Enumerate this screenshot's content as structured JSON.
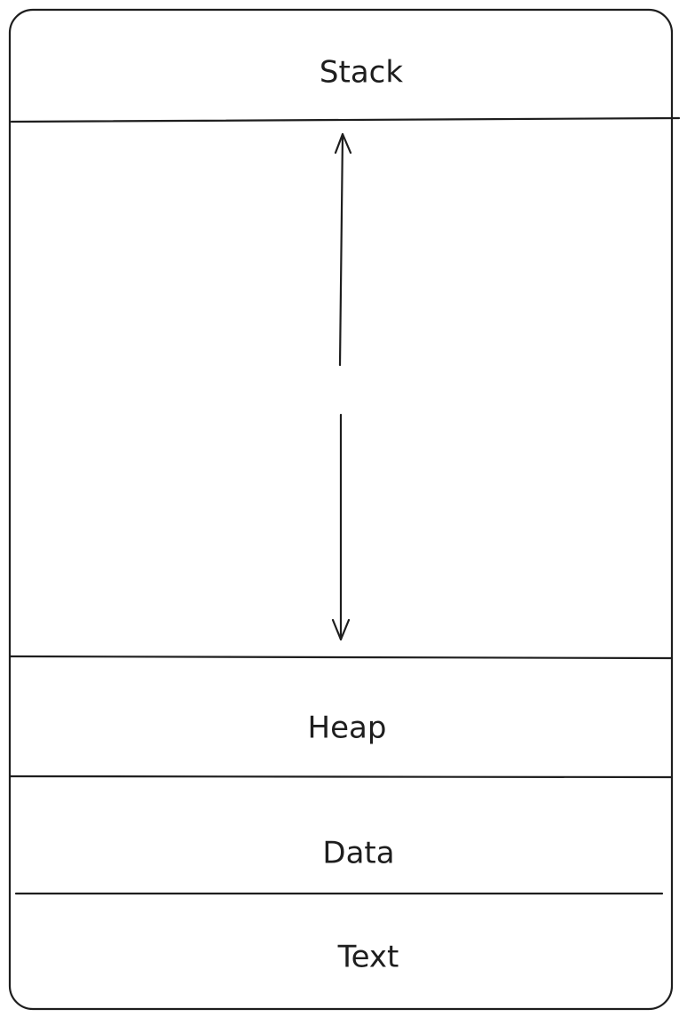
{
  "diagram": {
    "segments": {
      "stack": "Stack",
      "heap": "Heap",
      "data": "Data",
      "text": "Text"
    }
  }
}
